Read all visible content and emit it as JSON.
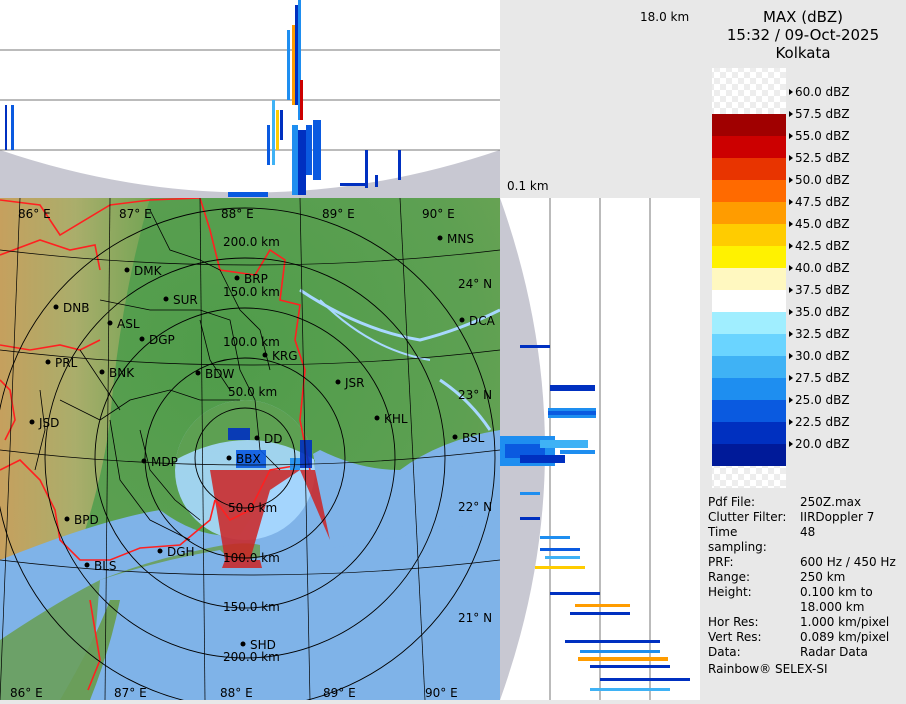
{
  "product": {
    "title": "MAX (dBZ)",
    "datetime": "15:32 / 09-Oct-2025",
    "station": "Kolkata"
  },
  "top_panel": {
    "height_top_label": "18.0 km",
    "height_bottom_label": "0.1 km"
  },
  "legend": {
    "entries": [
      {
        "label": "60.0 dBZ",
        "color": "#f3f3f3"
      },
      {
        "label": "57.5 dBZ",
        "color": "#f7f7f7"
      },
      {
        "label": "55.0 dBZ",
        "color": "#a00000"
      },
      {
        "label": "52.5 dBZ",
        "color": "#cc0000"
      },
      {
        "label": "50.0 dBZ",
        "color": "#e83400"
      },
      {
        "label": "47.5 dBZ",
        "color": "#ff6a00"
      },
      {
        "label": "45.0 dBZ",
        "color": "#ff9c00"
      },
      {
        "label": "42.5 dBZ",
        "color": "#ffcc00"
      },
      {
        "label": "40.0 dBZ",
        "color": "#fff200"
      },
      {
        "label": "37.5 dBZ",
        "color": "#fff8c0"
      },
      {
        "label": "35.0 dBZ",
        "color": "#ffffff"
      },
      {
        "label": "32.5 dBZ",
        "color": "#a0eeff"
      },
      {
        "label": "30.0 dBZ",
        "color": "#6ad4ff"
      },
      {
        "label": "27.5 dBZ",
        "color": "#3fb2f5"
      },
      {
        "label": "25.0 dBZ",
        "color": "#1e8ef0"
      },
      {
        "label": "22.5 dBZ",
        "color": "#0a5ae0"
      },
      {
        "label": "20.0 dBZ",
        "color": "#0030c0"
      },
      {
        "label": "",
        "color": "#001a99"
      }
    ]
  },
  "map": {
    "lat_labels": [
      {
        "label": "24° N"
      },
      {
        "label": "23° N"
      },
      {
        "label": "22° N"
      },
      {
        "label": "21° N"
      }
    ],
    "lon_labels_top": [
      {
        "label": "86° E"
      },
      {
        "label": "87° E"
      },
      {
        "label": "88° E"
      },
      {
        "label": "89° E"
      },
      {
        "label": "90° E"
      }
    ],
    "lon_labels_bottom": [
      {
        "label": "86° E"
      },
      {
        "label": "87° E"
      },
      {
        "label": "88° E"
      },
      {
        "label": "89° E"
      },
      {
        "label": "90° E"
      }
    ],
    "range_labels": [
      {
        "label": "200.0 km"
      },
      {
        "label": "150.0 km"
      },
      {
        "label": "100.0 km"
      },
      {
        "label": "50.0 km"
      },
      {
        "label": "50.0 km"
      },
      {
        "label": "100.0 km"
      },
      {
        "label": "150.0 km"
      },
      {
        "label": "200.0 km"
      }
    ],
    "cities": [
      {
        "code": "MNS"
      },
      {
        "code": "DMK"
      },
      {
        "code": "BRP"
      },
      {
        "code": "DNB"
      },
      {
        "code": "SUR"
      },
      {
        "code": "DCA"
      },
      {
        "code": "ASL"
      },
      {
        "code": "DGP"
      },
      {
        "code": "KRG"
      },
      {
        "code": "PRL"
      },
      {
        "code": "BNK"
      },
      {
        "code": "BDW"
      },
      {
        "code": "JSR"
      },
      {
        "code": "KHL"
      },
      {
        "code": "JSD"
      },
      {
        "code": "BSL"
      },
      {
        "code": "MDP"
      },
      {
        "code": "BPD"
      },
      {
        "code": "DGH"
      },
      {
        "code": "BLS"
      },
      {
        "code": "SHD"
      },
      {
        "code": "DD"
      },
      {
        "code": "BBX"
      }
    ]
  },
  "metadata": [
    {
      "key": "Pdf File:",
      "value": "250Z.max"
    },
    {
      "key": "Clutter Filter:",
      "value": "IIRDoppler 7"
    },
    {
      "key": "Time sampling:",
      "value": "48"
    },
    {
      "key": "PRF:",
      "value": "600 Hz / 450 Hz"
    },
    {
      "key": "Range:",
      "value": "250 km"
    },
    {
      "key": "Height:",
      "value": "0.100 km to 18.000 km"
    },
    {
      "key": "Hor Res:",
      "value": "1.000 km/pixel"
    },
    {
      "key": "Vert Res:",
      "value": "0.089 km/pixel"
    },
    {
      "key": "Data:",
      "value": "Radar Data"
    }
  ],
  "brand": "Rainbow® SELEX-SI"
}
